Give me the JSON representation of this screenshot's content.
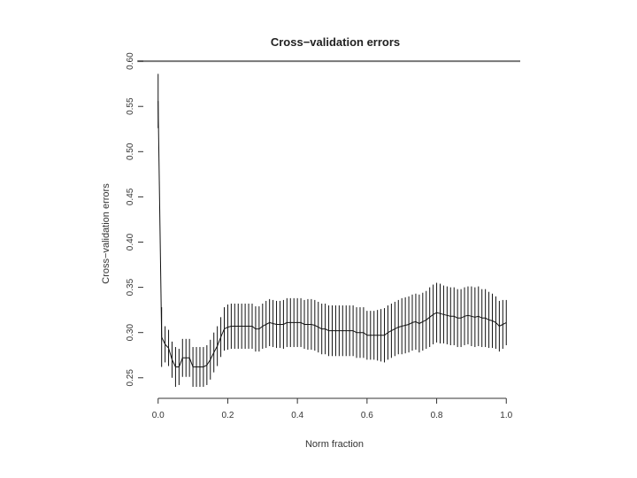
{
  "chart_data": {
    "type": "line",
    "title": "Cross−validation errors",
    "xlabel": "Norm fraction",
    "ylabel": "Cross−validation errors",
    "xlim": [
      -0.04,
      1.04
    ],
    "ylim": [
      0.24,
      0.606
    ],
    "x_ticks": [
      {
        "value": 0.0,
        "label": "0.0"
      },
      {
        "value": 0.2,
        "label": "0.2"
      },
      {
        "value": 0.4,
        "label": "0.4"
      },
      {
        "value": 0.6,
        "label": "0.6"
      },
      {
        "value": 0.8,
        "label": "0.8"
      },
      {
        "value": 1.0,
        "label": "1.0"
      }
    ],
    "y_ticks": [
      {
        "value": 0.25,
        "label": "0.25"
      },
      {
        "value": 0.3,
        "label": "0.30"
      },
      {
        "value": 0.35,
        "label": "0.35"
      },
      {
        "value": 0.4,
        "label": "0.40"
      },
      {
        "value": 0.45,
        "label": "0.45"
      },
      {
        "value": 0.5,
        "label": "0.50"
      },
      {
        "value": 0.55,
        "label": "0.55"
      },
      {
        "value": 0.6,
        "label": "0.60"
      }
    ],
    "reference_line": {
      "y": 0.6,
      "x_range": [
        -0.06,
        1.04
      ],
      "color": "#777777"
    },
    "series": [
      {
        "x": [
          0.0,
          0.01,
          0.02,
          0.03,
          0.04,
          0.05,
          0.06,
          0.07,
          0.08,
          0.09,
          0.1,
          0.11,
          0.12,
          0.13,
          0.14,
          0.15,
          0.16,
          0.17,
          0.18,
          0.19,
          0.2,
          0.21,
          0.22,
          0.23,
          0.24,
          0.25,
          0.26,
          0.27,
          0.28,
          0.29,
          0.3,
          0.31,
          0.32,
          0.33,
          0.34,
          0.35,
          0.36,
          0.37,
          0.38,
          0.39,
          0.4,
          0.41,
          0.42,
          0.43,
          0.44,
          0.45,
          0.46,
          0.47,
          0.48,
          0.49,
          0.5,
          0.51,
          0.52,
          0.53,
          0.54,
          0.55,
          0.56,
          0.57,
          0.58,
          0.59,
          0.6,
          0.61,
          0.62,
          0.63,
          0.64,
          0.65,
          0.66,
          0.67,
          0.68,
          0.69,
          0.7,
          0.71,
          0.72,
          0.73,
          0.74,
          0.75,
          0.76,
          0.77,
          0.78,
          0.79,
          0.8,
          0.81,
          0.82,
          0.83,
          0.84,
          0.85,
          0.86,
          0.87,
          0.88,
          0.89,
          0.9,
          0.91,
          0.92,
          0.93,
          0.94,
          0.95,
          0.96,
          0.97,
          0.98,
          0.99,
          1.0
        ],
        "y": [
          0.556,
          0.295,
          0.287,
          0.283,
          0.27,
          0.262,
          0.262,
          0.272,
          0.272,
          0.272,
          0.262,
          0.262,
          0.262,
          0.262,
          0.264,
          0.27,
          0.278,
          0.285,
          0.295,
          0.304,
          0.306,
          0.307,
          0.307,
          0.307,
          0.307,
          0.307,
          0.307,
          0.307,
          0.304,
          0.304,
          0.307,
          0.309,
          0.311,
          0.31,
          0.309,
          0.309,
          0.309,
          0.311,
          0.311,
          0.311,
          0.311,
          0.311,
          0.309,
          0.309,
          0.309,
          0.308,
          0.306,
          0.304,
          0.304,
          0.302,
          0.302,
          0.302,
          0.302,
          0.302,
          0.302,
          0.302,
          0.302,
          0.3,
          0.3,
          0.3,
          0.297,
          0.297,
          0.297,
          0.297,
          0.297,
          0.297,
          0.3,
          0.302,
          0.304,
          0.306,
          0.307,
          0.308,
          0.309,
          0.311,
          0.312,
          0.31,
          0.312,
          0.314,
          0.317,
          0.32,
          0.322,
          0.321,
          0.32,
          0.319,
          0.318,
          0.318,
          0.316,
          0.316,
          0.318,
          0.319,
          0.318,
          0.317,
          0.318,
          0.316,
          0.316,
          0.314,
          0.313,
          0.311,
          0.307,
          0.309,
          0.311
        ],
        "se": [
          0.03,
          0.033,
          0.02,
          0.02,
          0.02,
          0.022,
          0.02,
          0.021,
          0.021,
          0.021,
          0.022,
          0.022,
          0.022,
          0.022,
          0.022,
          0.022,
          0.022,
          0.022,
          0.022,
          0.024,
          0.025,
          0.025,
          0.025,
          0.025,
          0.025,
          0.025,
          0.025,
          0.025,
          0.025,
          0.025,
          0.025,
          0.026,
          0.026,
          0.026,
          0.026,
          0.026,
          0.027,
          0.027,
          0.027,
          0.027,
          0.027,
          0.027,
          0.027,
          0.028,
          0.028,
          0.028,
          0.028,
          0.028,
          0.028,
          0.028,
          0.028,
          0.028,
          0.028,
          0.028,
          0.028,
          0.028,
          0.028,
          0.028,
          0.028,
          0.028,
          0.027,
          0.027,
          0.027,
          0.028,
          0.029,
          0.03,
          0.03,
          0.03,
          0.03,
          0.03,
          0.031,
          0.031,
          0.031,
          0.031,
          0.031,
          0.032,
          0.032,
          0.032,
          0.033,
          0.033,
          0.033,
          0.033,
          0.032,
          0.032,
          0.032,
          0.032,
          0.032,
          0.032,
          0.032,
          0.032,
          0.033,
          0.033,
          0.033,
          0.032,
          0.032,
          0.031,
          0.03,
          0.029,
          0.028,
          0.027,
          0.025
        ]
      }
    ],
    "grid": false,
    "legend": "none"
  }
}
